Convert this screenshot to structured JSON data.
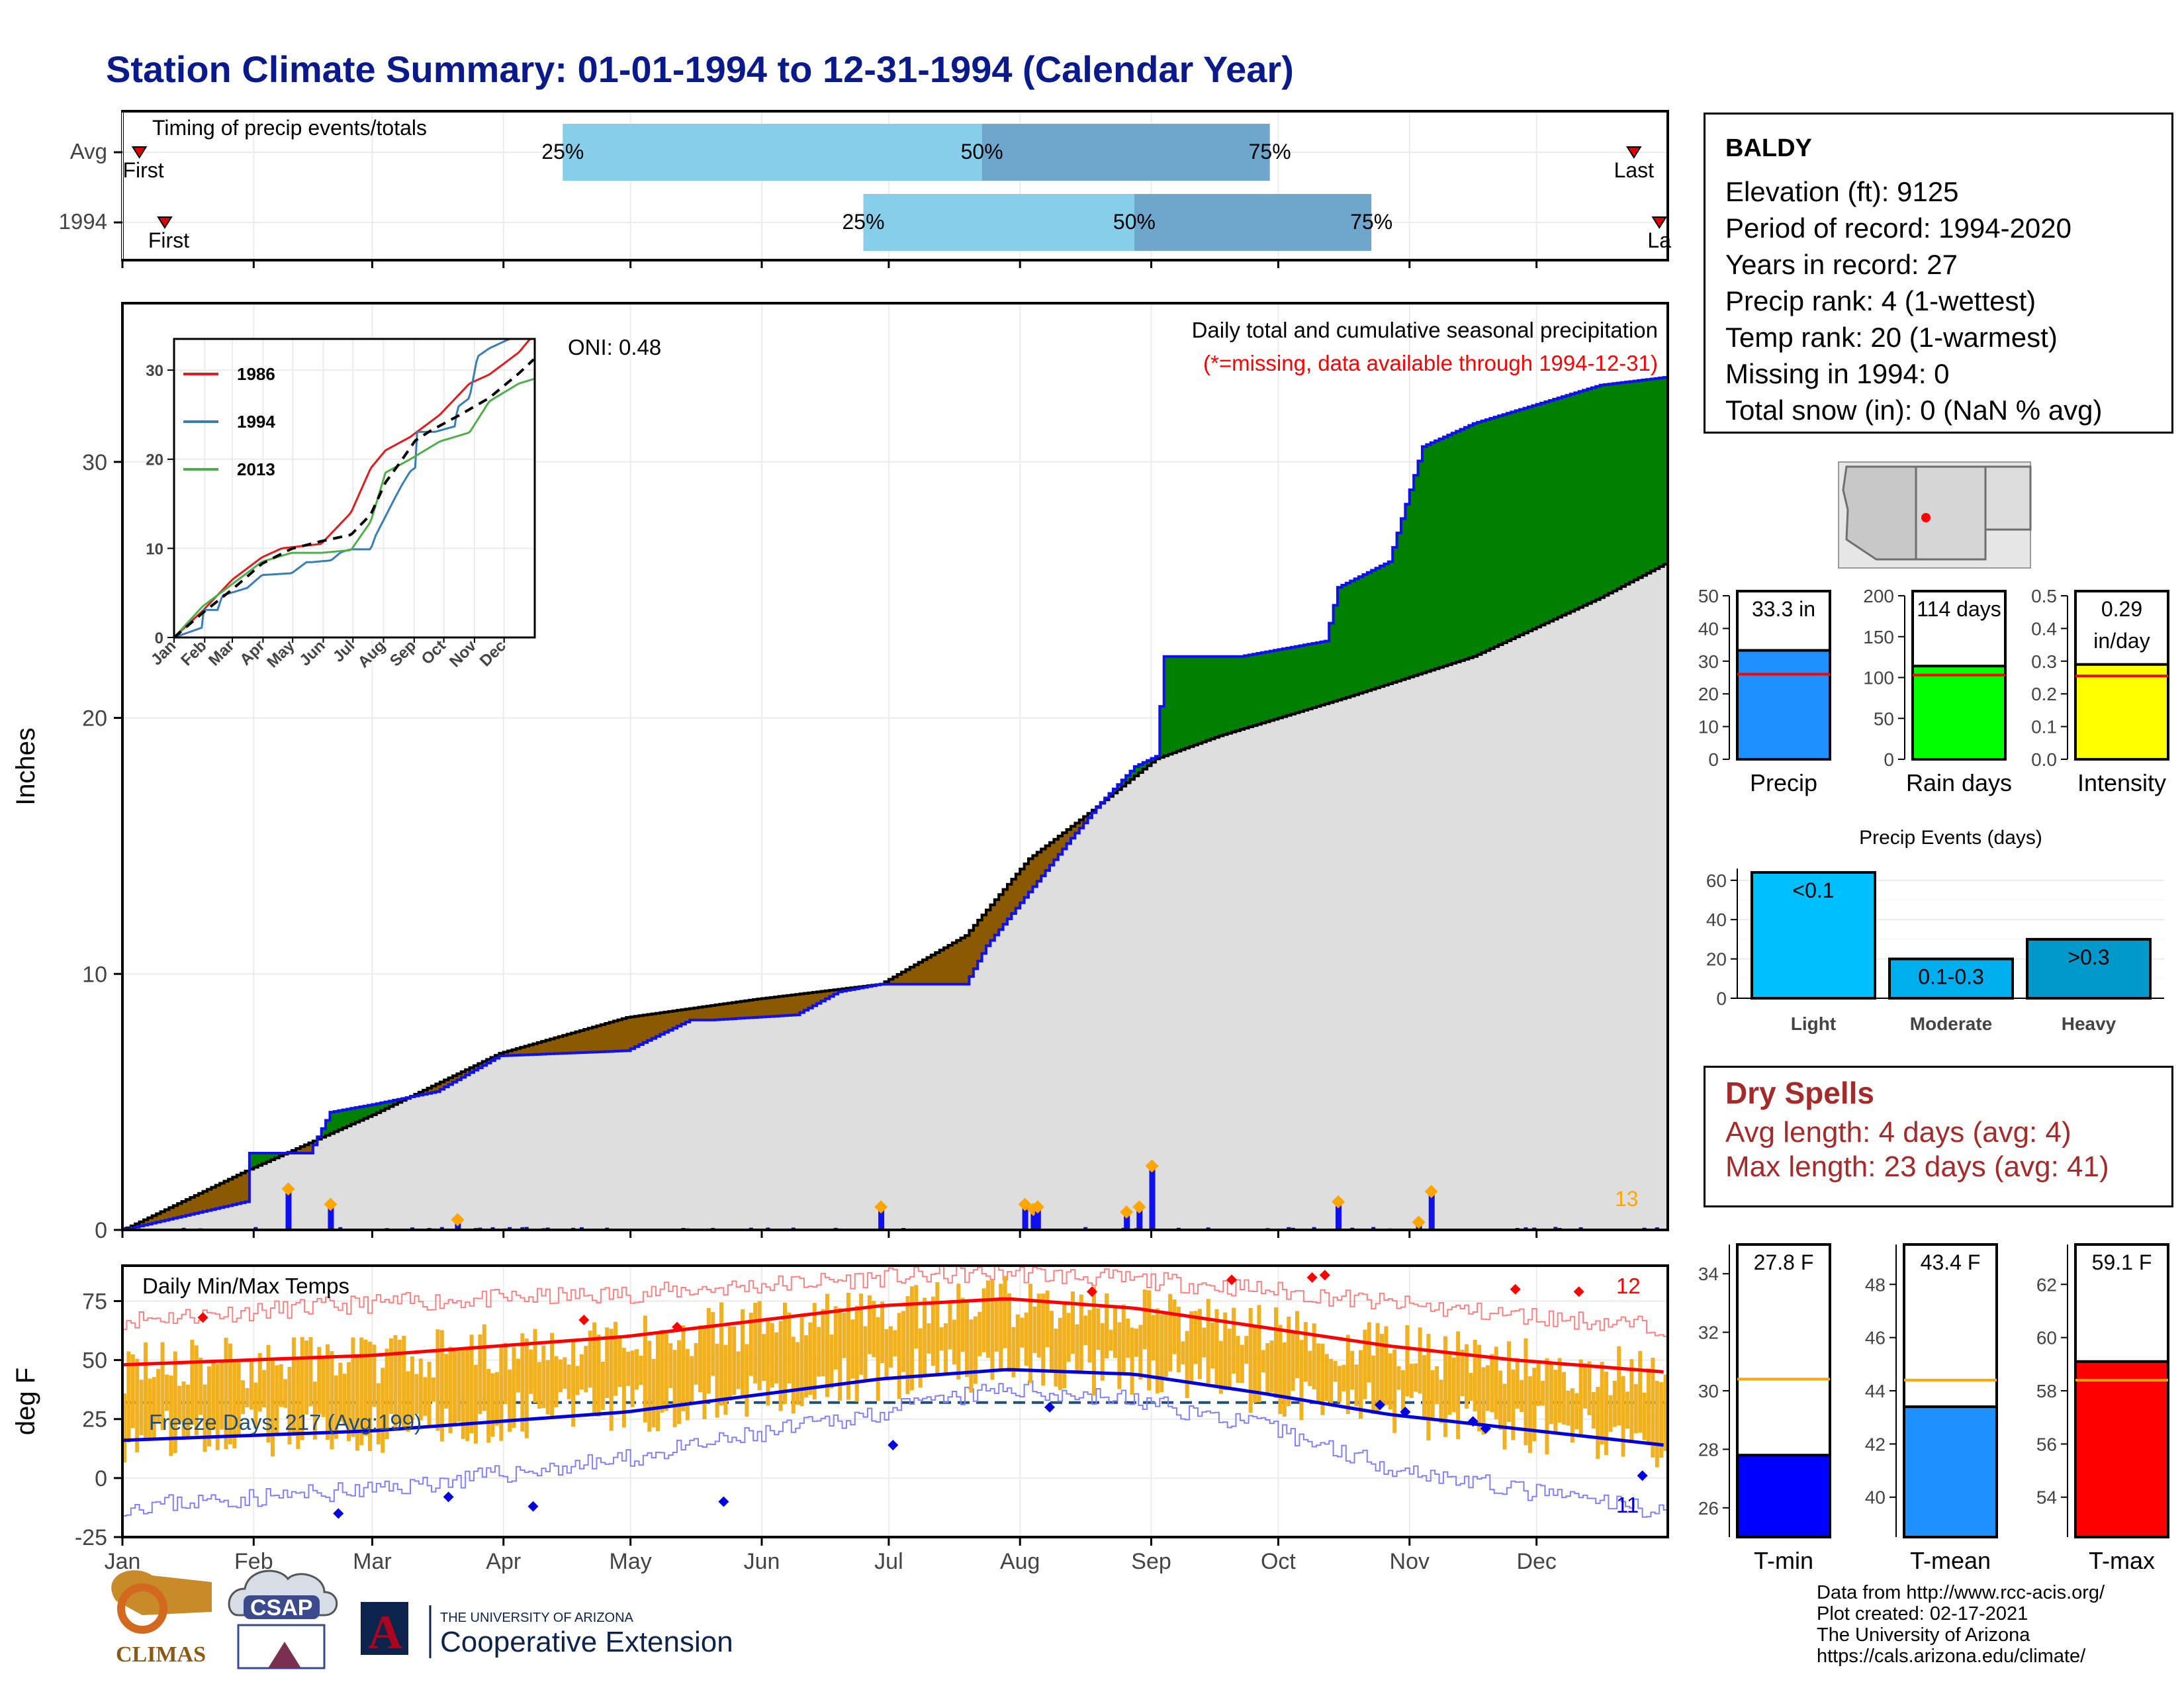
{
  "page": {
    "title": "Station Climate Summary: 01-01-1994 to 12-31-1994 (Calendar Year)"
  },
  "timing_panel": {
    "title": "Timing of precip events/totals",
    "rows": [
      {
        "label": "Avg",
        "first_label": "First",
        "last_label": "Last",
        "first_day": 5,
        "last_day": 358,
        "q25_day": 105,
        "q50_day": 204,
        "q75_day": 272,
        "q25_label": "25%",
        "q50_label": "50%",
        "q75_label": "75%"
      },
      {
        "label": "1994",
        "first_label": "First",
        "last_label": "La",
        "first_day": 11,
        "last_day": 364,
        "q25_day": 176,
        "q50_day": 240,
        "q75_day": 296,
        "q25_label": "25%",
        "q50_label": "50%",
        "q75_label": "75%"
      }
    ]
  },
  "precip_panel": {
    "title": "Daily total and cumulative seasonal precipitation",
    "subtitle": "(*=missing, data available through 1994-12-31)",
    "oni_label": "ONI: 0.48",
    "ylabel": "Inches",
    "corner_count": "13",
    "yticks": [
      0,
      10,
      20,
      30
    ]
  },
  "months": [
    "Jan",
    "Feb",
    "Mar",
    "Apr",
    "May",
    "Jun",
    "Jul",
    "Aug",
    "Sep",
    "Oct",
    "Nov",
    "Dec"
  ],
  "inset": {
    "yticks": [
      "0",
      "10",
      "20",
      "30"
    ],
    "legend": [
      {
        "name": "1986",
        "color": "#e41a1c"
      },
      {
        "name": "1994",
        "color": "#377eb8"
      },
      {
        "name": "2013",
        "color": "#4daf4a"
      }
    ]
  },
  "temp_panel": {
    "title": "Daily Min/Max Temps",
    "ylabel": "deg F",
    "freeze_label": "Freeze Days: 217 (Avg:199)",
    "max_count": "12",
    "min_count": "11",
    "yticks": [
      "-25",
      "0",
      "25",
      "50",
      "75"
    ]
  },
  "station": {
    "name": "BALDY",
    "lines": [
      "Elevation (ft): 9125",
      "Period of record: 1994-2020",
      "Years in record: 27",
      "Precip rank: 4 (1-wettest)",
      "Temp rank: 20 (1-warmest)",
      "Missing in 1994: 0",
      "Total snow (in): 0 (NaN % avg)"
    ]
  },
  "precip_summary": [
    {
      "label": "Precip",
      "value_label": "33.3 in",
      "value": 33.3,
      "avg": 26,
      "ymax": 50,
      "ticks": [
        "0",
        "10",
        "20",
        "30",
        "40",
        "50"
      ],
      "color": "#1e90ff"
    },
    {
      "label": "Rain days",
      "value_label": "114 days",
      "value": 114,
      "avg": 103,
      "ymax": 200,
      "ticks": [
        "0",
        "50",
        "100",
        "150",
        "200"
      ],
      "color": "#00ff00"
    },
    {
      "label": "Intensity",
      "value_label": "0.29",
      "value_label2": "in/day",
      "value": 0.29,
      "avg": 0.255,
      "ymax": 0.5,
      "ticks": [
        "0.0",
        "0.1",
        "0.2",
        "0.3",
        "0.4",
        "0.5"
      ],
      "color": "#ffff00"
    }
  ],
  "precip_events": {
    "title": "Precip Events (days)",
    "categories": [
      "Light",
      "Moderate",
      "Heavy"
    ],
    "values": [
      64,
      20,
      30
    ],
    "bar_labels": [
      "<0.1",
      "0.1-0.3",
      ">0.3"
    ],
    "colors": [
      "#00bfff",
      "#00aeee",
      "#0099cc"
    ],
    "ticks": [
      "0",
      "20",
      "40",
      "60"
    ]
  },
  "dry_spells": {
    "title": "Dry Spells",
    "avg_line": "Avg length: 4 days (avg: 4)",
    "max_line": "Max length: 23 days (avg: 41)"
  },
  "temp_summary": [
    {
      "label": "T-min",
      "value_label": "27.8 F",
      "value": 27.8,
      "avg": 30.4,
      "ymin": 25,
      "ymax": 35,
      "ticks": [
        "26",
        "28",
        "30",
        "32",
        "34"
      ],
      "color": "#0000ff"
    },
    {
      "label": "T-mean",
      "value_label": "43.4 F",
      "value": 43.4,
      "avg": 44.4,
      "ymin": 38.5,
      "ymax": 49.5,
      "ticks": [
        "40",
        "42",
        "44",
        "46",
        "48"
      ],
      "color": "#1e90ff"
    },
    {
      "label": "T-max",
      "value_label": "59.1 F",
      "value": 59.1,
      "avg": 58.4,
      "ymin": 52.5,
      "ymax": 63.5,
      "ticks": [
        "54",
        "56",
        "58",
        "60",
        "62"
      ],
      "color": "#ff0000"
    }
  ],
  "chart_data": [
    {
      "type": "area",
      "title": "Daily total and cumulative seasonal precipitation",
      "ylabel": "Inches",
      "ylim": [
        0,
        36
      ],
      "x_units": "day of year",
      "series": [
        {
          "name": "1994",
          "x": [
            1,
            30,
            31,
            40,
            45,
            50,
            60,
            75,
            90,
            120,
            135,
            140,
            160,
            170,
            180,
            200,
            205,
            215,
            225,
            232,
            240,
            245,
            247,
            250,
            265,
            285,
            288,
            300,
            308,
            320,
            350,
            365
          ],
          "values": [
            0,
            1.1,
            3.0,
            3.0,
            3.0,
            4.6,
            4.9,
            5.4,
            6.8,
            7.0,
            8.2,
            8.2,
            8.4,
            9.3,
            9.6,
            9.6,
            11.1,
            13.2,
            15.3,
            16.7,
            18.1,
            18.5,
            22.4,
            22.4,
            22.4,
            23.0,
            25.1,
            26.1,
            30.6,
            31.5,
            33.0,
            33.3
          ]
        },
        {
          "name": "avg",
          "x": [
            1,
            30,
            60,
            90,
            120,
            150,
            180,
            200,
            215,
            230,
            245,
            260,
            290,
            320,
            350,
            365
          ],
          "values": [
            0,
            2.3,
            4.5,
            6.9,
            8.3,
            9.0,
            9.6,
            11.5,
            14.5,
            16.4,
            18.4,
            19.3,
            20.8,
            22.4,
            24.7,
            26.0
          ]
        }
      ],
      "daily_totals_x": [
        40,
        50,
        80,
        180,
        214,
        216,
        217,
        238,
        241,
        244,
        288,
        307,
        310
      ],
      "daily_totals": [
        1.6,
        1.0,
        0.4,
        0.9,
        1.0,
        0.8,
        0.9,
        0.7,
        0.9,
        2.5,
        1.1,
        0.3,
        1.5
      ]
    },
    {
      "type": "line",
      "title": "Daily Min/Max Temps",
      "ylabel": "deg F",
      "ylim": [
        -25,
        90
      ],
      "x_units": "day of year",
      "series": [
        {
          "name": "avg max",
          "x": [
            1,
            60,
            120,
            180,
            210,
            240,
            270,
            300,
            330,
            365
          ],
          "values": [
            48,
            52,
            60,
            73,
            76,
            72,
            64,
            56,
            50,
            45
          ]
        },
        {
          "name": "avg min",
          "x": [
            1,
            60,
            120,
            180,
            210,
            240,
            270,
            300,
            330,
            365
          ],
          "values": [
            16,
            20,
            28,
            42,
            46,
            44,
            36,
            27,
            21,
            14
          ]
        },
        {
          "name": "record max",
          "x": [
            1,
            60,
            120,
            180,
            210,
            240,
            270,
            300,
            330,
            365
          ],
          "values": [
            67,
            74,
            78,
            85,
            87,
            84,
            80,
            74,
            69,
            64
          ]
        },
        {
          "name": "record min",
          "x": [
            1,
            60,
            120,
            180,
            210,
            240,
            270,
            300,
            330,
            365
          ],
          "values": [
            -12,
            -5,
            8,
            28,
            38,
            33,
            22,
            5,
            -5,
            -14
          ]
        }
      ],
      "freeze_line": 32
    }
  ]
}
